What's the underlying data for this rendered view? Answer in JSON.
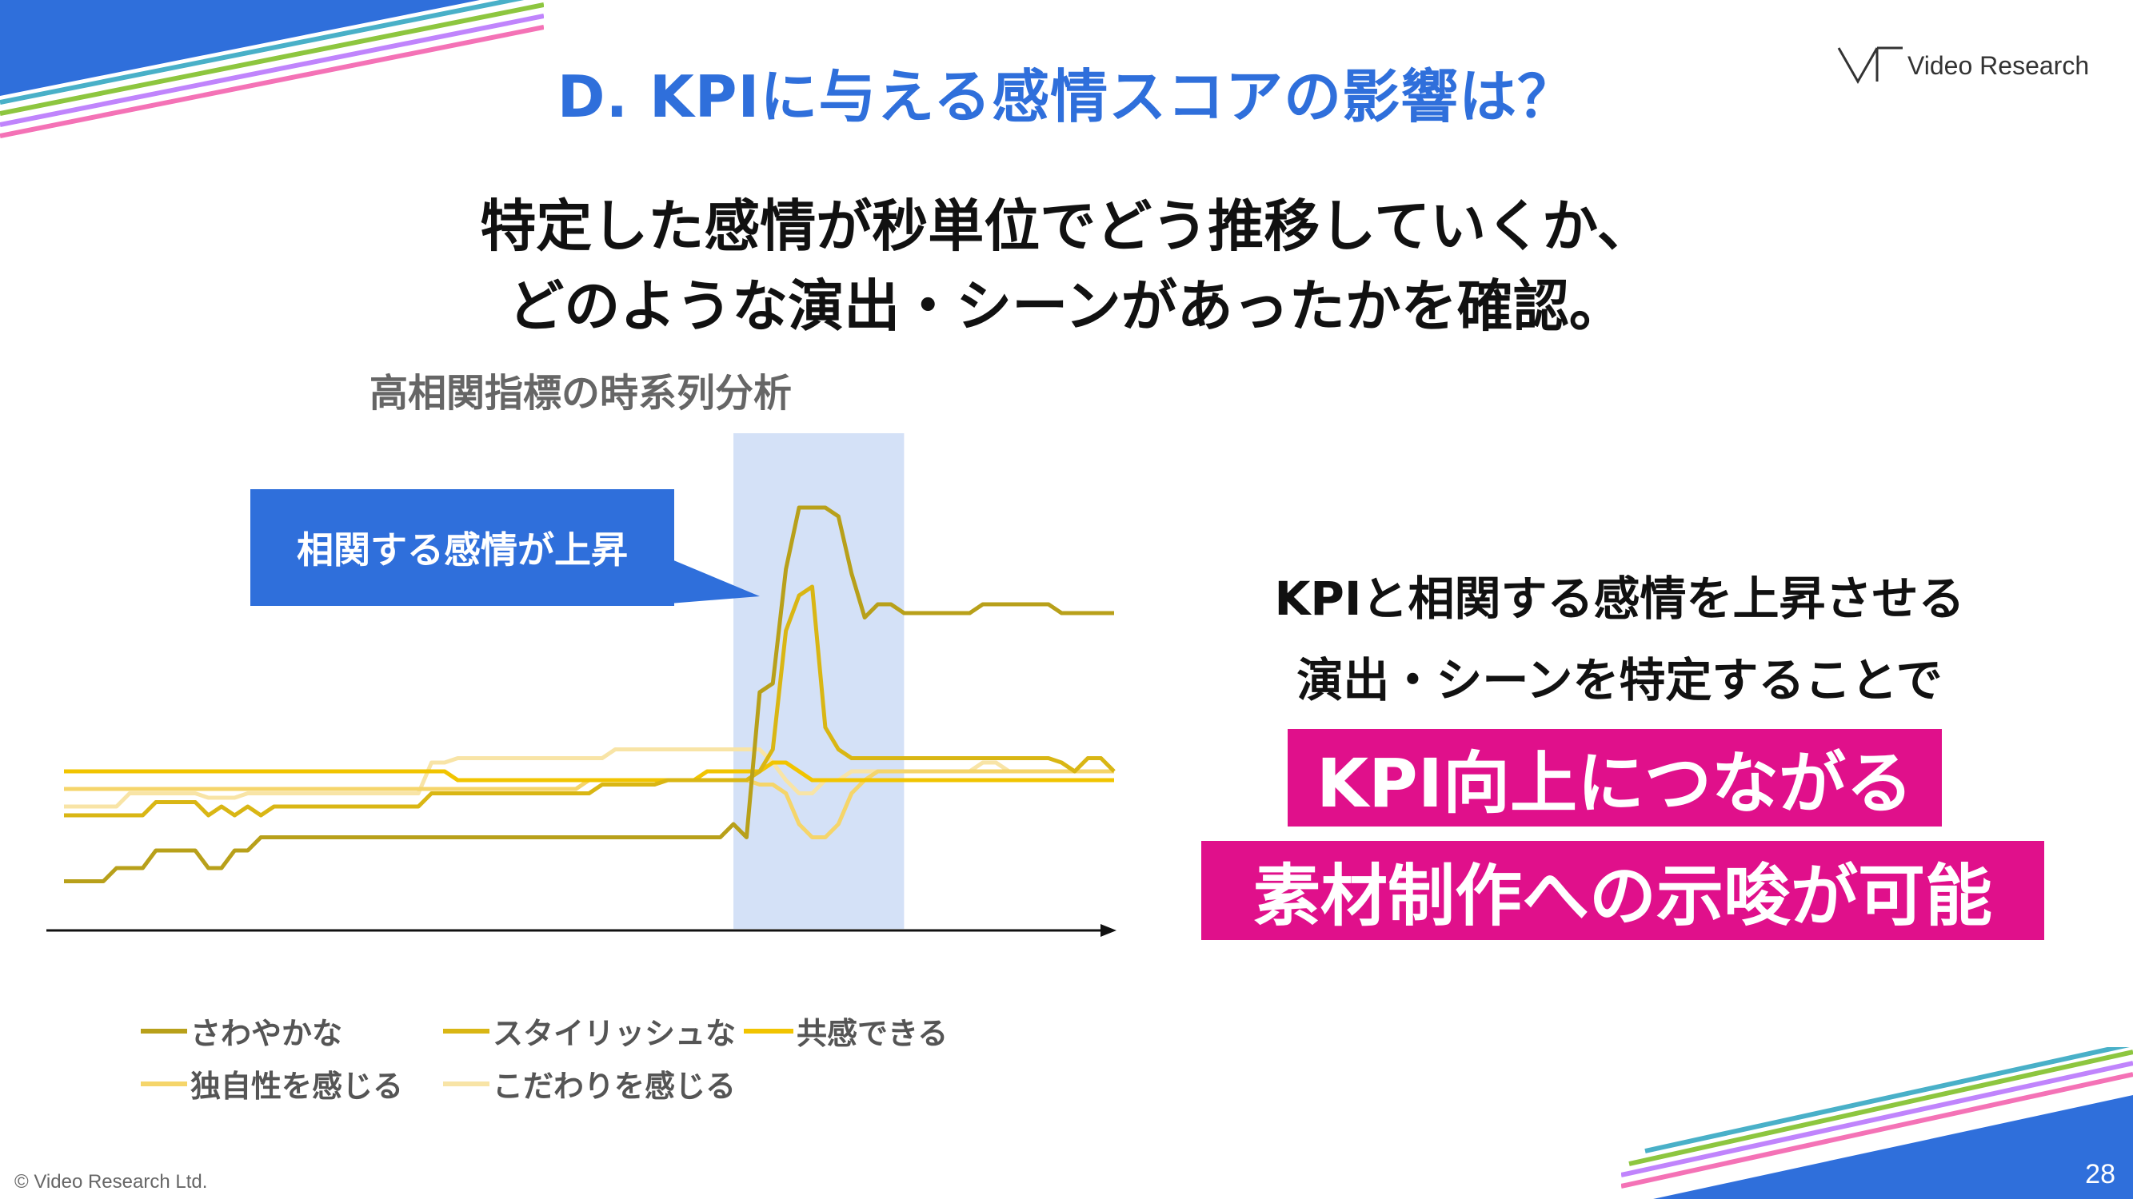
{
  "slide": {
    "title": "D. KPIに与える感情スコアの影響は？",
    "logo_text": "Video Research",
    "headline_line1": "特定した感情が秒単位でどう推移していくか、",
    "headline_line2": "どのような演出・シーンがあったかを確認。",
    "subtitle": "高相関指標の時系列分析",
    "callout": "相関する感情が上昇",
    "message_line1": "KPIと相関する感情を上昇させる",
    "message_line2": "演出・シーンを特定することで",
    "highlight_line1": "KPI向上につながる",
    "highlight_line2": "素材制作への示唆が可能",
    "copyright": "© Video Research Ltd.",
    "page_number": "28",
    "colors": {
      "title_blue": "#2f6fdb",
      "highlight_pink": "#e0108b",
      "shaded_band": "#d4e1f7"
    }
  },
  "chart_data": {
    "type": "line",
    "xlabel": "",
    "ylabel": "",
    "x": [
      0,
      1,
      2,
      3,
      4,
      5,
      6,
      7,
      8,
      9,
      10,
      11,
      12,
      13,
      14,
      15,
      16,
      17,
      18,
      19,
      20,
      21,
      22,
      23,
      24,
      25,
      26,
      27,
      28,
      29,
      30,
      31,
      32,
      33,
      34,
      35,
      36,
      37,
      38,
      39,
      40,
      41,
      42,
      43,
      44,
      45,
      46,
      47,
      48,
      49,
      50,
      51,
      52,
      53,
      54,
      55,
      56,
      57,
      58,
      59,
      60,
      61,
      62,
      63,
      64,
      65,
      66,
      67,
      68,
      69,
      70,
      71,
      72,
      73,
      74,
      75,
      76,
      77,
      78,
      79,
      80
    ],
    "highlight_band": [
      51,
      64
    ],
    "series": [
      {
        "name": "さわやかな",
        "color": "#b8a01a",
        "values": [
          5,
          5,
          5,
          5,
          8,
          8,
          8,
          12,
          12,
          12,
          12,
          8,
          8,
          12,
          12,
          15,
          15,
          15,
          15,
          15,
          15,
          15,
          15,
          15,
          15,
          15,
          15,
          15,
          15,
          15,
          15,
          15,
          15,
          15,
          15,
          15,
          15,
          15,
          15,
          15,
          15,
          15,
          15,
          15,
          15,
          15,
          15,
          15,
          15,
          15,
          15,
          18,
          15,
          48,
          50,
          76,
          90,
          90,
          90,
          88,
          75,
          65,
          68,
          68,
          66,
          66,
          66,
          66,
          66,
          66,
          68,
          68,
          68,
          68,
          68,
          68,
          66,
          66,
          66,
          66,
          66
        ]
      },
      {
        "name": "スタイリッシュな",
        "color": "#d9b614",
        "values": [
          20,
          20,
          20,
          20,
          20,
          20,
          20,
          23,
          23,
          23,
          23,
          20,
          22,
          20,
          22,
          20,
          22,
          22,
          22,
          22,
          22,
          22,
          22,
          22,
          22,
          22,
          22,
          22,
          25,
          25,
          25,
          25,
          25,
          25,
          25,
          25,
          25,
          25,
          25,
          25,
          25,
          27,
          27,
          27,
          27,
          27,
          28,
          28,
          28,
          28,
          28,
          28,
          28,
          30,
          35,
          62,
          70,
          72,
          40,
          35,
          33,
          33,
          33,
          33,
          33,
          33,
          33,
          33,
          33,
          33,
          33,
          33,
          33,
          33,
          33,
          33,
          32,
          30,
          33,
          33,
          30
        ]
      },
      {
        "name": "共感できる",
        "color": "#f1c400",
        "values": [
          30,
          30,
          30,
          30,
          30,
          30,
          30,
          30,
          30,
          30,
          30,
          30,
          30,
          30,
          30,
          30,
          30,
          30,
          30,
          30,
          30,
          30,
          30,
          30,
          30,
          30,
          30,
          30,
          30,
          30,
          28,
          28,
          28,
          28,
          28,
          28,
          28,
          28,
          28,
          28,
          28,
          28,
          28,
          28,
          28,
          28,
          28,
          28,
          28,
          30,
          30,
          30,
          30,
          30,
          32,
          32,
          30,
          28,
          28,
          28,
          28,
          28,
          28,
          28,
          28,
          28,
          28,
          28,
          28,
          28,
          28,
          28,
          28,
          28,
          28,
          28,
          28,
          28,
          28,
          28,
          28
        ]
      },
      {
        "name": "独自性を感じる",
        "color": "#f5d56a",
        "values": [
          26,
          26,
          26,
          26,
          26,
          26,
          26,
          26,
          26,
          26,
          26,
          26,
          26,
          26,
          26,
          26,
          26,
          26,
          26,
          26,
          26,
          26,
          26,
          26,
          26,
          26,
          26,
          26,
          26,
          26,
          26,
          26,
          26,
          26,
          26,
          26,
          26,
          26,
          26,
          26,
          28,
          28,
          28,
          28,
          28,
          28,
          28,
          28,
          28,
          28,
          28,
          28,
          28,
          27,
          27,
          25,
          18,
          15,
          15,
          18,
          25,
          28,
          30,
          30,
          30,
          30,
          30,
          30,
          30,
          30,
          30,
          30,
          30,
          30,
          30,
          30,
          30,
          30,
          30,
          30,
          30
        ]
      },
      {
        "name": "こだわりを感じる",
        "color": "#f8e4a6",
        "values": [
          22,
          22,
          22,
          22,
          22,
          25,
          25,
          25,
          25,
          25,
          25,
          24,
          24,
          24,
          25,
          25,
          25,
          25,
          25,
          25,
          25,
          25,
          25,
          25,
          25,
          25,
          25,
          25,
          32,
          32,
          33,
          33,
          33,
          33,
          33,
          33,
          33,
          33,
          33,
          33,
          33,
          33,
          35,
          35,
          35,
          35,
          35,
          35,
          35,
          35,
          35,
          35,
          35,
          35,
          32,
          28,
          25,
          25,
          28,
          28,
          30,
          30,
          30,
          30,
          30,
          30,
          30,
          30,
          30,
          30,
          32,
          32,
          30,
          30,
          30,
          30,
          30,
          30,
          30,
          30,
          30
        ]
      }
    ]
  }
}
